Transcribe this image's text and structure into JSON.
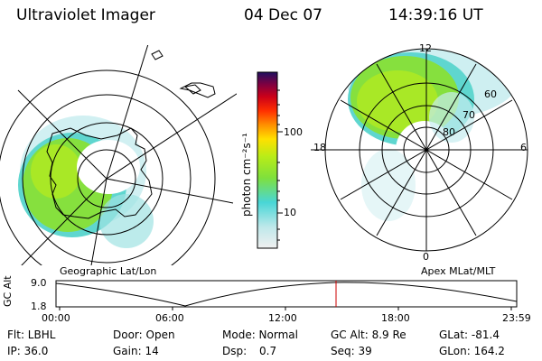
{
  "header": {
    "instrument": "Ultraviolet Imager",
    "date": "04 Dec 07",
    "time": "14:39:16 UT"
  },
  "left_panel": {
    "caption": "Geographic Lat/Lon"
  },
  "right_panel": {
    "caption": "Apex MLat/MLT",
    "mlt_labels": {
      "top": "12",
      "left": "18",
      "right": "6",
      "bottom": "0"
    },
    "lat_labels": [
      "60",
      "70",
      "80"
    ]
  },
  "colorbar": {
    "unit_label": "photon cm⁻²s⁻¹",
    "ticks": [
      "100",
      "10"
    ],
    "scale": "log",
    "colors": [
      "#f0f0f0",
      "#bfe8ea",
      "#48d6d6",
      "#7fe03c",
      "#b8ec18",
      "#ffe000",
      "#ff9000",
      "#ff3000",
      "#cc0018",
      "#800040",
      "#201060"
    ]
  },
  "altitude_plot": {
    "axis_label": "GC Alt",
    "y_ticks": [
      "9.0",
      "1.8"
    ],
    "x_ticks": [
      "00:00",
      "06:00",
      "12:00",
      "18:00",
      "23:59"
    ],
    "marker_time": "14:39",
    "marker_color": "#cc0000"
  },
  "status": {
    "filter": "Flt: LBHL",
    "ip": "IP: 36.0",
    "door": "Door: Open",
    "gain": "Gain: 14",
    "mode": "Mode: Normal",
    "dsp_label": "Dsp:",
    "dsp_value": "0.7",
    "gc_alt": "GC Alt: 8.9 Re",
    "seq": "Seq: 39",
    "glat": "GLat: -81.4",
    "glon": "GLon: 164.2"
  }
}
